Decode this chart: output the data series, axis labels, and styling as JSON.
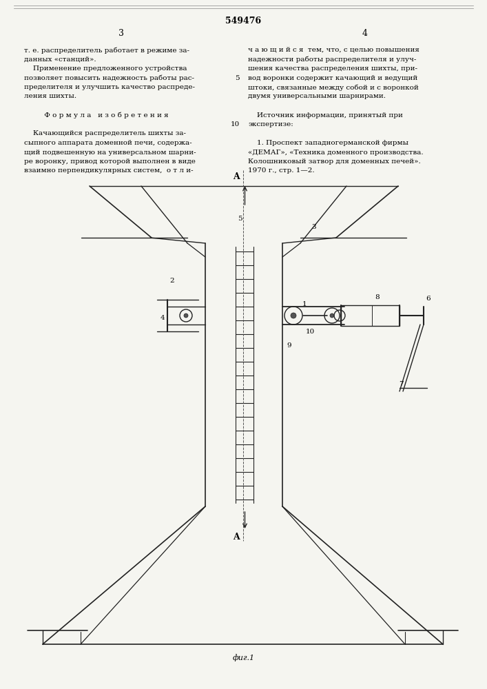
{
  "patent_number": "549476",
  "page_left": "3",
  "page_right": "4",
  "bg_color": "#f5f5f0",
  "text_color": "#000000",
  "left_column_text": [
    "т. е. распределитель работает в режиме за-",
    "данных «станций».",
    "    Применение предложенного устройства",
    "позволяет повысить надежность работы рас-",
    "пределителя и улучшить качество распреде-",
    "ления шихты.",
    "",
    "         Ф о р м у л а   и з о б р е т е н и я",
    "",
    "    Качающийся распределитель шихты за-",
    "сыпного аппарата доменной печи, содержа-",
    "щий подвешенную на универсальном шарни-",
    "ре воронку, привод которой выполнен в виде",
    "взаимно перпендикулярных систем,  о т л и-"
  ],
  "right_column_text": [
    "ч а ю щ и й с я  тем, что, с целью повышения",
    "надежности работы распределителя и улуч-",
    "шения качества распределения шихты, при-",
    "вод воронки содержит качающий и ведущий",
    "штоки, связанные между собой и с воронкой",
    "двумя универсальными шарнирами.",
    "",
    "    Источник информации, принятый при",
    "экспертизе:",
    "",
    "    1. Проспект западногерманской фирмы",
    "«ДЕМАГ», «Техника доменного производства.",
    "Колошниковый затвор для доменных печей».",
    "1970 г., стр. 1—2."
  ],
  "fig_label": "фиг.1",
  "diagram_labels": {
    "A_top": "A",
    "A_bottom": "A",
    "numbers": [
      "1",
      "2",
      "3",
      "4",
      "5",
      "6",
      "7",
      "8",
      "9",
      "10"
    ]
  }
}
